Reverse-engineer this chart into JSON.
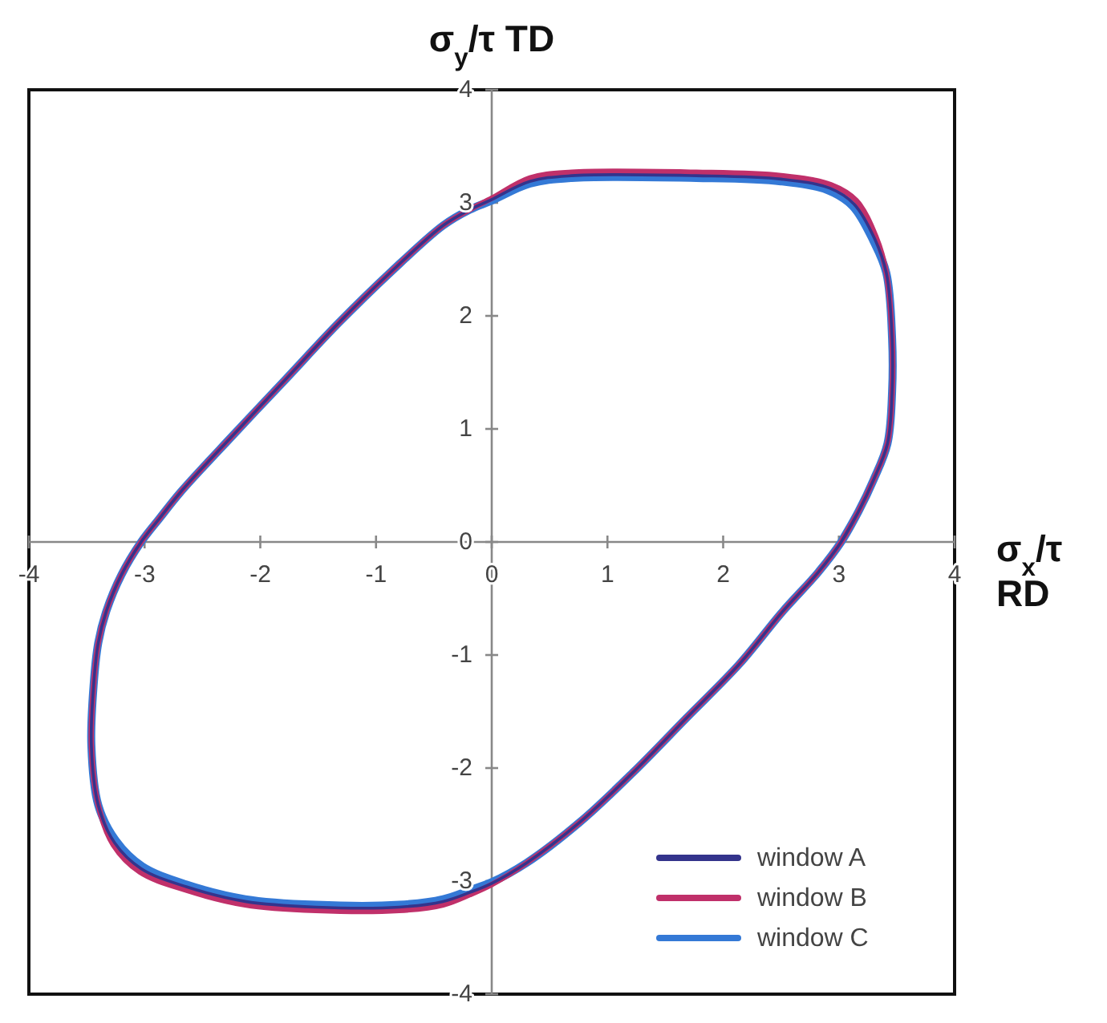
{
  "chart_data": {
    "type": "line",
    "ylabel": "σ$_{y}$/τ TD",
    "xlabel": "σ$_{x}$/τ\nRD",
    "xlim": [
      -4,
      4
    ],
    "ylim": [
      -4,
      4
    ],
    "xticks": [
      -4,
      -3,
      -2,
      -1,
      0,
      1,
      2,
      3,
      4
    ],
    "yticks": [
      -4,
      -3,
      -2,
      -1,
      0,
      1,
      2,
      3,
      4
    ],
    "legend": "bottom right",
    "series": [
      {
        "name": "window A",
        "color": "#34348c",
        "x": [
          3.02,
          3.17,
          3.3,
          3.42,
          3.46,
          3.46,
          3.41,
          3.31,
          3.13,
          2.92,
          2.5,
          1.77,
          0.69,
          0.33,
          0,
          -0.19,
          -0.42,
          -0.87,
          -1.33,
          -1.78,
          -2.24,
          -2.69,
          -2.87,
          -3.03,
          -3.2,
          -3.33,
          -3.4,
          -3.44,
          -3.46,
          -3.4,
          -3.26,
          -3.03,
          -2.64,
          -2.13,
          -1.52,
          -0.8,
          -0.42,
          -0.19,
          0,
          0.3,
          0.76,
          1.22,
          1.68,
          2.14,
          2.51,
          2.82,
          3.02,
          3.17
        ],
        "values": [
          0,
          0.27,
          0.55,
          0.87,
          1.33,
          1.8,
          2.38,
          2.68,
          2.99,
          3.13,
          3.21,
          3.24,
          3.24,
          3.19,
          3.03,
          2.94,
          2.8,
          2.39,
          1.93,
          1.44,
          0.94,
          0.44,
          0.21,
          0,
          -0.29,
          -0.61,
          -0.89,
          -1.26,
          -1.8,
          -2.33,
          -2.66,
          -2.89,
          -3.05,
          -3.18,
          -3.23,
          -3.23,
          -3.18,
          -3.1,
          -3.02,
          -2.84,
          -2.48,
          -2.04,
          -1.56,
          -1.08,
          -0.62,
          -0.27,
          0,
          0.27
        ]
      },
      {
        "name": "window B",
        "color": "#c0306a",
        "x": [
          3.02,
          3.17,
          3.3,
          3.42,
          3.46,
          3.46,
          3.41,
          3.32,
          3.15,
          2.93,
          2.5,
          1.77,
          0.69,
          0.33,
          0,
          -0.19,
          -0.42,
          -0.87,
          -1.33,
          -1.78,
          -2.24,
          -2.69,
          -2.87,
          -3.03,
          -3.2,
          -3.33,
          -3.4,
          -3.44,
          -3.46,
          -3.4,
          -3.27,
          -3.04,
          -2.64,
          -2.13,
          -1.52,
          -0.8,
          -0.42,
          -0.19,
          0,
          0.3,
          0.76,
          1.22,
          1.68,
          2.14,
          2.51,
          2.82,
          3.02,
          3.17
        ],
        "values": [
          0,
          0.27,
          0.55,
          0.87,
          1.33,
          1.8,
          2.38,
          2.7,
          3.02,
          3.16,
          3.24,
          3.27,
          3.27,
          3.22,
          3.04,
          2.94,
          2.8,
          2.39,
          1.93,
          1.44,
          0.94,
          0.44,
          0.21,
          0,
          -0.29,
          -0.61,
          -0.89,
          -1.26,
          -1.8,
          -2.33,
          -2.68,
          -2.92,
          -3.08,
          -3.21,
          -3.26,
          -3.26,
          -3.21,
          -3.12,
          -3.03,
          -2.84,
          -2.48,
          -2.04,
          -1.56,
          -1.08,
          -0.62,
          -0.27,
          0,
          0.27
        ]
      },
      {
        "name": "window C",
        "color": "#3479d6",
        "x": [
          3.02,
          3.17,
          3.3,
          3.42,
          3.46,
          3.46,
          3.41,
          3.3,
          3.12,
          2.91,
          2.5,
          1.77,
          0.69,
          0.33,
          0,
          -0.19,
          -0.42,
          -0.87,
          -1.33,
          -1.78,
          -2.24,
          -2.69,
          -2.87,
          -3.03,
          -3.2,
          -3.33,
          -3.4,
          -3.44,
          -3.46,
          -3.4,
          -3.25,
          -3.02,
          -2.64,
          -2.13,
          -1.52,
          -0.8,
          -0.42,
          -0.19,
          0,
          0.3,
          0.76,
          1.22,
          1.68,
          2.14,
          2.51,
          2.82,
          3.02,
          3.17
        ],
        "values": [
          0,
          0.27,
          0.55,
          0.87,
          1.33,
          1.8,
          2.38,
          2.66,
          2.97,
          3.11,
          3.19,
          3.22,
          3.22,
          3.17,
          3.02,
          2.94,
          2.8,
          2.39,
          1.93,
          1.44,
          0.94,
          0.44,
          0.21,
          0,
          -0.29,
          -0.61,
          -0.89,
          -1.26,
          -1.8,
          -2.33,
          -2.64,
          -2.87,
          -3.03,
          -3.16,
          -3.21,
          -3.21,
          -3.16,
          -3.08,
          -3.01,
          -2.84,
          -2.48,
          -2.04,
          -1.56,
          -1.08,
          -0.62,
          -0.27,
          0,
          0.27
        ]
      }
    ]
  }
}
